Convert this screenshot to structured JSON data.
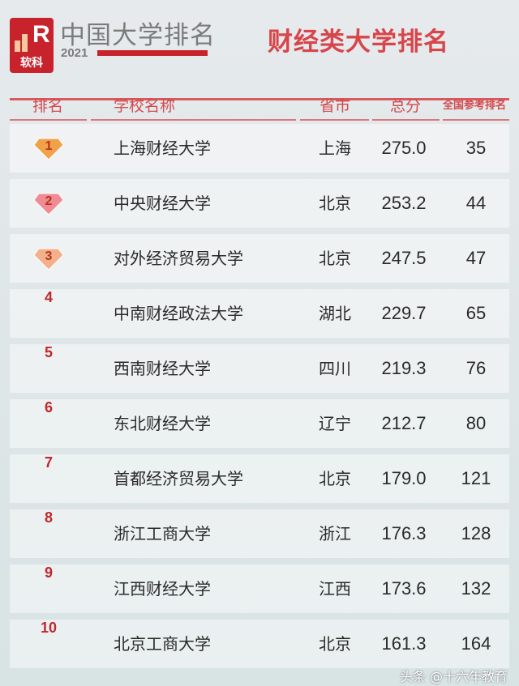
{
  "logo": {
    "text": "软科",
    "letter": "R"
  },
  "brand": {
    "title": "中国大学排名",
    "year": "2021"
  },
  "page_title": "财经类大学排名",
  "headers": [
    "排名",
    "学校名称",
    "省市",
    "总分",
    "全国参考排名"
  ],
  "rows": [
    {
      "rank": "1",
      "name": "上海财经大学",
      "province": "上海",
      "score": "275.0",
      "national": "35",
      "medal": "gold"
    },
    {
      "rank": "2",
      "name": "中央财经大学",
      "province": "北京",
      "score": "253.2",
      "national": "44",
      "medal": "pink"
    },
    {
      "rank": "3",
      "name": "对外经济贸易大学",
      "province": "北京",
      "score": "247.5",
      "national": "47",
      "medal": "peach"
    },
    {
      "rank": "4",
      "name": "中南财经政法大学",
      "province": "湖北",
      "score": "229.7",
      "national": "65"
    },
    {
      "rank": "5",
      "name": "西南财经大学",
      "province": "四川",
      "score": "219.3",
      "national": "76"
    },
    {
      "rank": "6",
      "name": "东北财经大学",
      "province": "辽宁",
      "score": "212.7",
      "national": "80"
    },
    {
      "rank": "7",
      "name": "首都经济贸易大学",
      "province": "北京",
      "score": "179.0",
      "national": "121"
    },
    {
      "rank": "8",
      "name": "浙江工商大学",
      "province": "浙江",
      "score": "176.3",
      "national": "128"
    },
    {
      "rank": "9",
      "name": "江西财经大学",
      "province": "江西",
      "score": "173.6",
      "national": "132"
    },
    {
      "rank": "10",
      "name": "北京工商大学",
      "province": "北京",
      "score": "161.3",
      "national": "164"
    }
  ],
  "watermark": "头条 @十六年教育",
  "colors": {
    "accent": "#c8232c",
    "header_text": "#d34a4d",
    "gold": "#f0a24a",
    "pink": "#f08a95",
    "peach": "#f4b08a"
  }
}
